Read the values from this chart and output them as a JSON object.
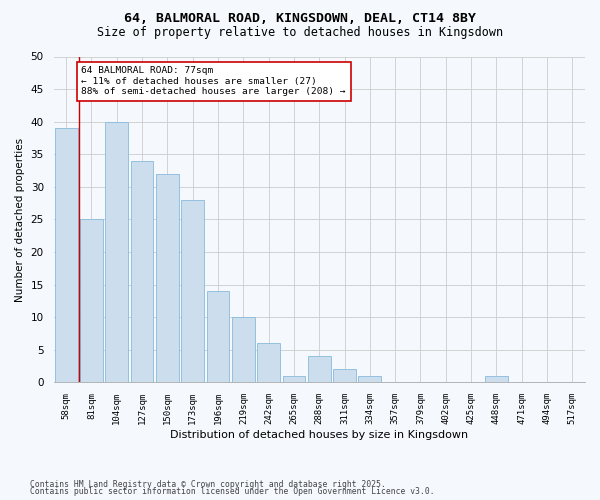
{
  "title_line1": "64, BALMORAL ROAD, KINGSDOWN, DEAL, CT14 8BY",
  "title_line2": "Size of property relative to detached houses in Kingsdown",
  "xlabel": "Distribution of detached houses by size in Kingsdown",
  "ylabel": "Number of detached properties",
  "categories": [
    "58sqm",
    "81sqm",
    "104sqm",
    "127sqm",
    "150sqm",
    "173sqm",
    "196sqm",
    "219sqm",
    "242sqm",
    "265sqm",
    "288sqm",
    "311sqm",
    "334sqm",
    "357sqm",
    "379sqm",
    "402sqm",
    "425sqm",
    "448sqm",
    "471sqm",
    "494sqm",
    "517sqm"
  ],
  "values": [
    39,
    25,
    40,
    34,
    32,
    28,
    14,
    10,
    6,
    1,
    4,
    2,
    1,
    0,
    0,
    0,
    0,
    1,
    0,
    0,
    0
  ],
  "bar_color": "#ccdded",
  "bar_edge_color": "#88bbdd",
  "grid_color": "#cccccc",
  "vline_color": "#cc0000",
  "annotation_text": "64 BALMORAL ROAD: 77sqm\n← 11% of detached houses are smaller (27)\n88% of semi-detached houses are larger (208) →",
  "annotation_box_color": "#ffffff",
  "annotation_box_edge": "#cc0000",
  "ylim": [
    0,
    50
  ],
  "yticks": [
    0,
    5,
    10,
    15,
    20,
    25,
    30,
    35,
    40,
    45,
    50
  ],
  "footnote_line1": "Contains HM Land Registry data © Crown copyright and database right 2025.",
  "footnote_line2": "Contains public sector information licensed under the Open Government Licence v3.0.",
  "bg_color": "#f5f8fc"
}
